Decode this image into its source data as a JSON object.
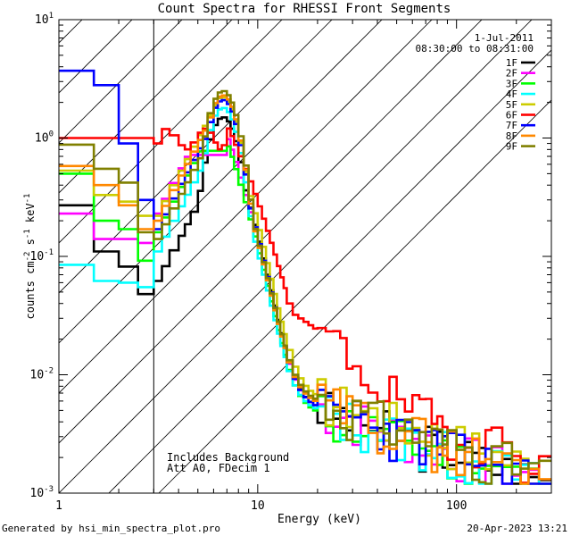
{
  "chart_data": {
    "type": "line",
    "title": "Count Spectra for RHESSI Front Segments",
    "xlabel": "Energy (keV)",
    "ylabel_parts": [
      "counts cm",
      "-2",
      " s",
      "-1",
      " keV",
      "-1"
    ],
    "x_scale": "log",
    "y_scale": "log",
    "xlim": [
      1,
      300
    ],
    "ylim": [
      0.001,
      10
    ],
    "x_ticks": [
      {
        "v": 10,
        "label": "10"
      },
      {
        "v": 100,
        "label": "100"
      }
    ],
    "x_tick_label_1": "1",
    "y_ticks": [
      {
        "v": 0.001,
        "base": "10",
        "exp": "-3"
      },
      {
        "v": 0.01,
        "base": "10",
        "exp": "-2"
      },
      {
        "v": 0.1,
        "base": "10",
        "exp": "-1"
      },
      {
        "v": 1,
        "base": "10",
        "exp": "0"
      },
      {
        "v": 10,
        "base": "10",
        "exp": "1"
      }
    ],
    "excluded_region_max_keV": 3,
    "date": "1-Jul-2011",
    "time_range": "08:30:00 to 08:31:00",
    "notes": [
      "Includes Background",
      "Att A0, FDecim 1"
    ],
    "footer_left": "Generated by hsi_min_spectra_plot.pro",
    "footer_right": "20-Apr-2023 13:21",
    "energy_edges": [
      1,
      1.5,
      2,
      2.5,
      3,
      3.3,
      3.6,
      4,
      4.3,
      4.6,
      5,
      5.3,
      5.6,
      6,
      6.3,
      6.6,
      7,
      7.3,
      7.6,
      8,
      8.5,
      9,
      9.5,
      10,
      10.5,
      11,
      11.5,
      12,
      12.5,
      13,
      13.5,
      14,
      15,
      16,
      17,
      18,
      19,
      20,
      22,
      24,
      26,
      28,
      30,
      33,
      36,
      40,
      43,
      46,
      50,
      55,
      60,
      65,
      70,
      75,
      80,
      85,
      90,
      100,
      110,
      120,
      130,
      140,
      150,
      170,
      190,
      210,
      230,
      260,
      300
    ],
    "series": [
      {
        "name": "1F",
        "color": "#000000",
        "low": [
          0.27,
          0.11,
          0.082,
          0.048,
          0.062
        ],
        "peak": 1.5,
        "hi_e": 6.6,
        "hi_v": 1.55,
        "tail_base": 0.0042,
        "tail_seed": 3
      },
      {
        "name": "2F",
        "color": "#ff00ff",
        "low": [
          0.23,
          0.14,
          0.14,
          0.13,
          0.23
        ],
        "peak": 0.72,
        "hi_e": 6.9,
        "hi_v": 1.15,
        "tail_base": 0.0042,
        "tail_seed": 7
      },
      {
        "name": "3F",
        "color": "#00ff00",
        "low": [
          0.5,
          0.2,
          0.17,
          0.092,
          0.16
        ],
        "peak": 0.78,
        "hi_e": 6.9,
        "hi_v": 1.0,
        "tail_base": 0.0038,
        "tail_seed": 11
      },
      {
        "name": "4F",
        "color": "#00ffff",
        "low": [
          0.085,
          0.062,
          0.06,
          0.055,
          0.11
        ],
        "peak": 1.8,
        "hi_e": 6.6,
        "hi_v": 1.1,
        "tail_base": 0.004,
        "tail_seed": 13
      },
      {
        "name": "5F",
        "color": "#cccc00",
        "low": [
          0.53,
          0.33,
          0.29,
          0.22,
          0.22
        ],
        "peak": 2.2,
        "hi_e": 7.3,
        "hi_v": 1.2,
        "tail_base": 0.0052,
        "tail_seed": 17
      },
      {
        "name": "6F",
        "color": "#ff0000",
        "low": [
          1.0,
          1.0,
          1.0,
          1.0,
          0.9
        ],
        "peak": 1.0,
        "hi_e": 7.6,
        "hi_v": 1.0,
        "tail_base": 0.0065,
        "tail_seed": 19
      },
      {
        "name": "7F",
        "color": "#0000ff",
        "low": [
          3.7,
          2.8,
          0.9,
          0.3,
          0.17
        ],
        "peak": 2.1,
        "hi_e": 6.9,
        "hi_v": 1.2,
        "tail_base": 0.0042,
        "tail_seed": 23
      },
      {
        "name": "8F",
        "color": "#ff8800",
        "low": [
          0.58,
          0.4,
          0.27,
          0.17,
          0.2
        ],
        "peak": 2.3,
        "hi_e": 6.9,
        "hi_v": 1.1,
        "tail_base": 0.0046,
        "tail_seed": 29
      },
      {
        "name": "9F",
        "color": "#808000",
        "low": [
          0.88,
          0.55,
          0.42,
          0.16,
          0.14
        ],
        "peak": 2.5,
        "hi_e": 6.9,
        "hi_v": 1.15,
        "tail_base": 0.0048,
        "tail_seed": 31
      }
    ]
  }
}
